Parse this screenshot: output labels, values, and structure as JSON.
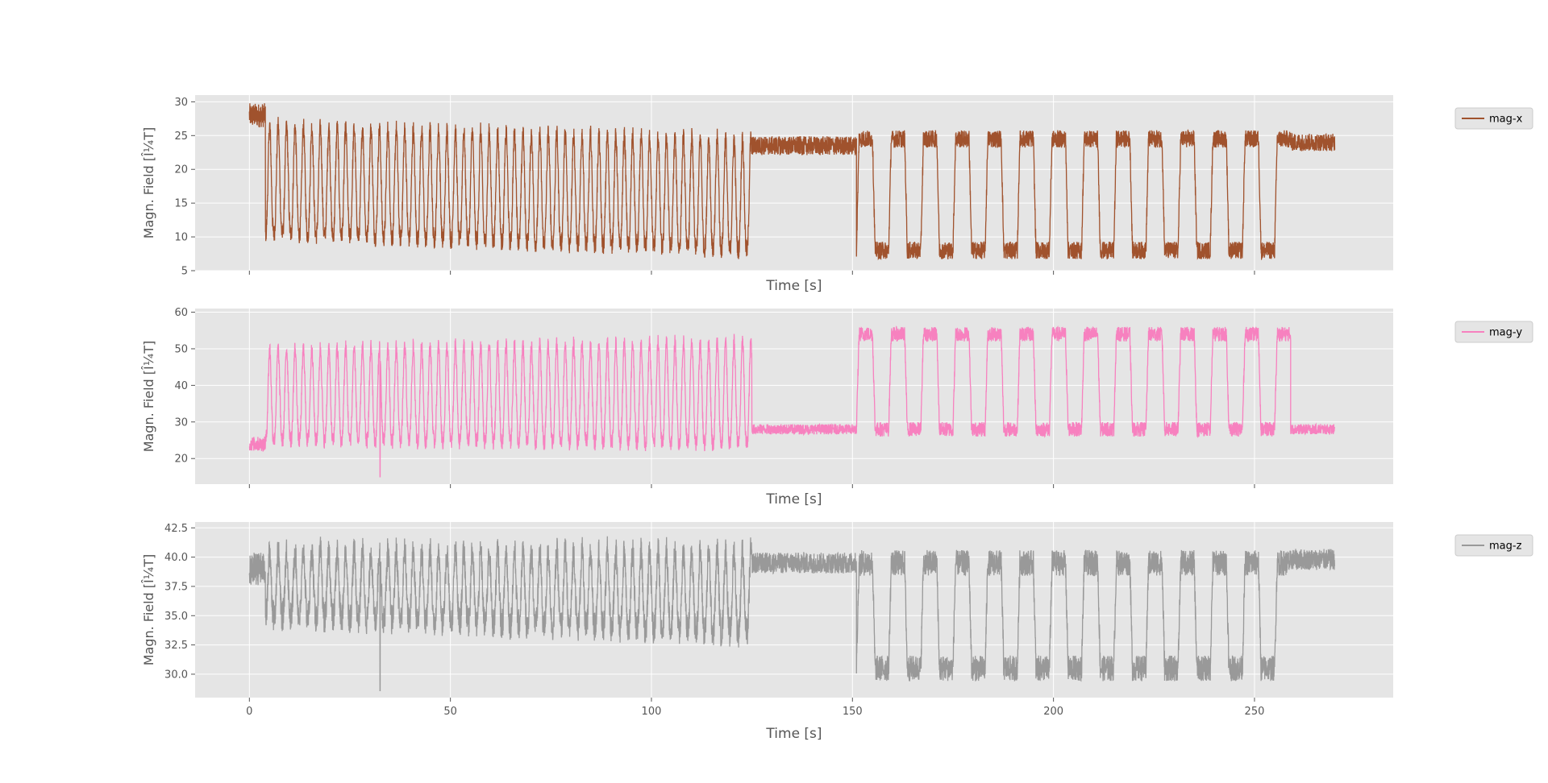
{
  "chart_data": [
    {
      "type": "line",
      "xlabel": "Time [s]",
      "ylabel": "Magn. Field [Î¼T]",
      "ylabel_display": "Magn. Field [Î¼T]",
      "xlim": [
        -13.5,
        284.5
      ],
      "ylim": [
        5,
        31
      ],
      "xticks": [
        0,
        50,
        100,
        150,
        200,
        250
      ],
      "xticklabels_visible": false,
      "yticks": [
        5,
        10,
        15,
        20,
        25,
        30
      ],
      "grid": true,
      "legend_placement": "right",
      "series": [
        {
          "name": "mag-x",
          "color": "#a0522d",
          "segments": [
            {
              "type": "flat",
              "t0": 0,
              "t1": 4,
              "level": 28,
              "noise": 1.8
            },
            {
              "type": "osc",
              "t0": 4,
              "t1": 125,
              "period": 2.1,
              "hi_start": 26.5,
              "hi_end": 24.5,
              "lo_start": 10.5,
              "lo_end": 8.0,
              "noise": 1.4
            },
            {
              "type": "flat",
              "t0": 125,
              "t1": 151,
              "level": 23.5,
              "noise": 1.4
            },
            {
              "type": "square",
              "t0": 151,
              "t1": 259,
              "period": 8.0,
              "duty": 0.5,
              "hi": 24.5,
              "lo": 8.0,
              "noise": 1.3
            },
            {
              "type": "flat",
              "t0": 259,
              "t1": 270,
              "level": 24,
              "noise": 1.3
            }
          ]
        }
      ]
    },
    {
      "type": "line",
      "xlabel": "Time [s]",
      "ylabel": "Magn. Field [Î¼T]",
      "xlim": [
        -13.5,
        284.5
      ],
      "ylim": [
        13,
        61
      ],
      "xticks": [
        0,
        50,
        100,
        150,
        200,
        250
      ],
      "xticklabels_visible": false,
      "yticks": [
        20,
        30,
        40,
        50,
        60
      ],
      "grid": true,
      "legend_placement": "right",
      "series": [
        {
          "name": "mag-y",
          "color": "#f781bf",
          "segments": [
            {
              "type": "flat",
              "t0": 0,
              "t1": 4,
              "level": 24,
              "noise": 2.0
            },
            {
              "type": "osc",
              "t0": 4,
              "t1": 125,
              "period": 2.1,
              "hi_start": 50,
              "hi_end": 52,
              "lo_start": 25,
              "lo_end": 24,
              "noise": 2.2,
              "spike_t": 32.5,
              "spike_v": 15
            },
            {
              "type": "flat",
              "t0": 125,
              "t1": 151,
              "level": 28,
              "noise": 1.4
            },
            {
              "type": "square",
              "t0": 151,
              "t1": 259,
              "period": 8.0,
              "duty": 0.5,
              "hi": 54,
              "lo": 28,
              "noise": 2.0
            },
            {
              "type": "flat",
              "t0": 259,
              "t1": 270,
              "level": 28,
              "noise": 1.4
            }
          ]
        }
      ]
    },
    {
      "type": "line",
      "xlabel": "Time [s]",
      "ylabel": "Magn. Field [Î¼T]",
      "xlim": [
        -13.5,
        284.5
      ],
      "ylim": [
        28,
        43
      ],
      "xticks": [
        0,
        50,
        100,
        150,
        200,
        250
      ],
      "xticklabels": [
        "0",
        "50",
        "100",
        "150",
        "200",
        "250"
      ],
      "xticklabels_visible": true,
      "yticks": [
        30.0,
        32.5,
        35.0,
        37.5,
        40.0,
        42.5
      ],
      "yticklabels": [
        "30.0",
        "32.5",
        "35.0",
        "37.5",
        "40.0",
        "42.5"
      ],
      "grid": true,
      "legend_placement": "right",
      "series": [
        {
          "name": "mag-z",
          "color": "#999999",
          "segments": [
            {
              "type": "flat",
              "t0": 0,
              "t1": 4,
              "level": 39,
              "noise": 1.4
            },
            {
              "type": "osc",
              "t0": 4,
              "t1": 125,
              "period": 2.1,
              "hi_start": 40.5,
              "hi_end": 40.5,
              "lo_start": 35.0,
              "lo_end": 33.5,
              "noise": 1.3,
              "spike_t": 32.5,
              "spike_v": 28.6
            },
            {
              "type": "flat",
              "t0": 125,
              "t1": 151,
              "level": 39.5,
              "noise": 0.9
            },
            {
              "type": "square",
              "t0": 151,
              "t1": 259,
              "period": 8.0,
              "duty": 0.5,
              "hi": 39.5,
              "lo": 30.5,
              "noise": 1.1
            },
            {
              "type": "flat",
              "t0": 259,
              "t1": 270,
              "level": 39.8,
              "noise": 0.9
            }
          ]
        }
      ]
    }
  ]
}
